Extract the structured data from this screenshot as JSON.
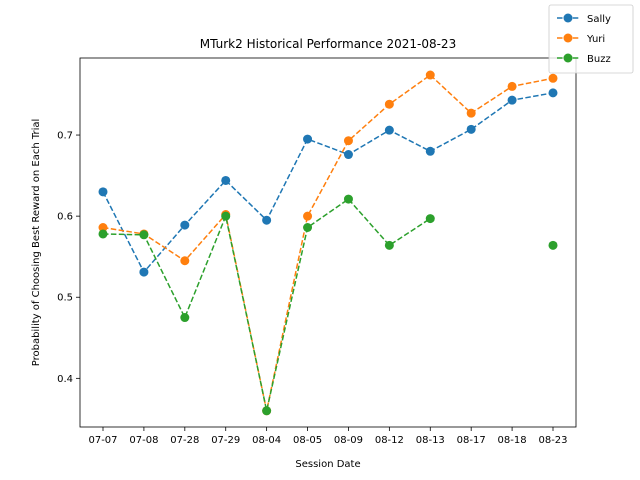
{
  "chart_data": {
    "type": "line",
    "title": "MTurk2 Historical Performance 2021-08-23",
    "xlabel": "Session Date",
    "ylabel": "Probability of Choosing Best Reward on Each Trial",
    "categories": [
      "07-07",
      "07-08",
      "07-28",
      "07-29",
      "08-04",
      "08-05",
      "08-09",
      "08-12",
      "08-13",
      "08-17",
      "08-18",
      "08-23"
    ],
    "ylim": [
      0.34,
      0.795
    ],
    "yticks": [
      0.4,
      0.5,
      0.6,
      0.7
    ],
    "ytick_labels": [
      "0.4",
      "0.5",
      "0.6",
      "0.7"
    ],
    "grid": false,
    "legend_position": "top-right",
    "series": [
      {
        "name": "Sally",
        "color": "#1f77b4",
        "values": [
          0.63,
          0.531,
          0.589,
          0.644,
          0.595,
          0.695,
          0.676,
          0.706,
          0.68,
          0.707,
          0.743,
          0.752
        ]
      },
      {
        "name": "Yuri",
        "color": "#ff7f0e",
        "values": [
          0.586,
          0.578,
          0.545,
          0.602,
          0.36,
          0.6,
          0.693,
          0.738,
          0.774,
          0.727,
          0.76,
          0.77
        ]
      },
      {
        "name": "Buzz",
        "color": "#2ca02c",
        "values": [
          0.578,
          0.577,
          0.475,
          0.6,
          0.36,
          0.586,
          0.621,
          0.564,
          0.597,
          null,
          null,
          0.564
        ]
      }
    ]
  }
}
